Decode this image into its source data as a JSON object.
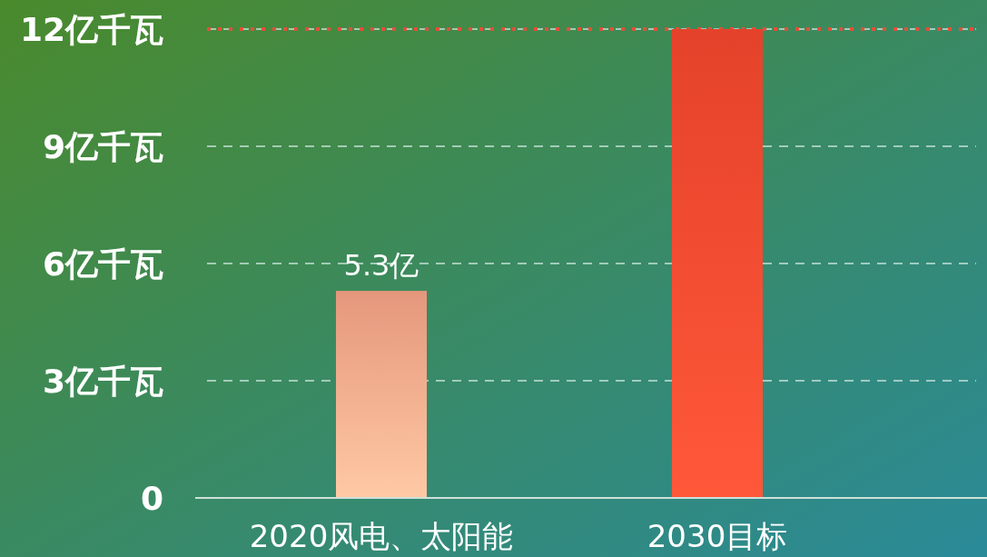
{
  "chart_data": {
    "type": "bar",
    "categories": [
      "2020风电、太阳能",
      "2030目标"
    ],
    "values": [
      5.3,
      12
    ],
    "colors": [
      "#ffa88a",
      "#ff4a30"
    ],
    "value_labels": [
      "5.3亿",
      null
    ],
    "ylim": [
      0,
      12
    ],
    "yticks": [
      {
        "value": 0,
        "label": "0"
      },
      {
        "value": 3,
        "label": "3亿千瓦"
      },
      {
        "value": 6,
        "label": "6亿千瓦"
      },
      {
        "value": 9,
        "label": "9亿千瓦"
      },
      {
        "value": 12,
        "label": "12亿千瓦"
      }
    ],
    "grid": "y",
    "ref_lines": [
      {
        "axis": "y",
        "value": 12,
        "color": "#e0503a",
        "line_style": "dotted"
      }
    ]
  }
}
